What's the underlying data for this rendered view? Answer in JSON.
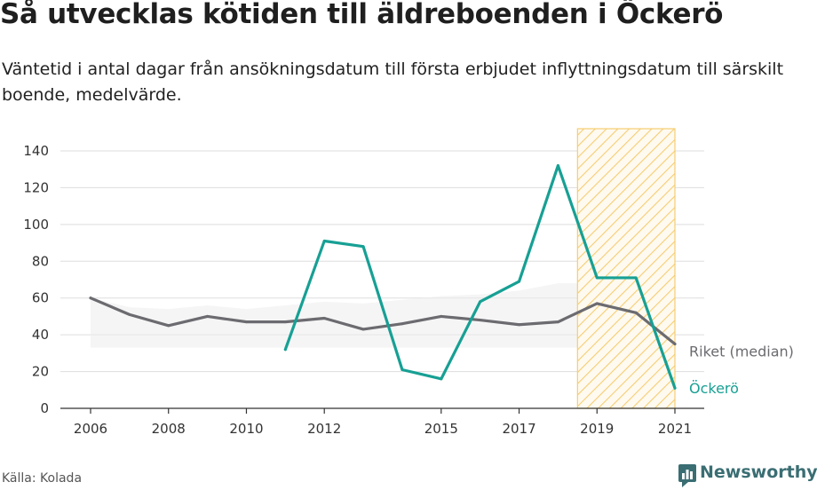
{
  "header": {
    "title": "Så utvecklas kötiden till äldreboenden i Öckerö",
    "subtitle": "Väntetid i antal dagar från ansökningsdatum till första erbjudet inflyttningsdatum till särskilt boende, medelvärde."
  },
  "footer": {
    "source": "Källa: Kolada",
    "brand": "Newsworthy",
    "brand_icon": "newsworthy-logo-icon"
  },
  "colors": {
    "ockero": "#17a094",
    "riket": "#6b6b70",
    "highlight_hatch": "#f5cd72",
    "grid": "#dddddd",
    "band_fill": "#ececec",
    "brand": "#3a6e73"
  },
  "chart_data": {
    "type": "line",
    "title": "Så utvecklas kötiden till äldreboenden i Öckerö",
    "xlabel": "",
    "ylabel": "",
    "xlim": [
      2006,
      2021
    ],
    "ylim": [
      0,
      140
    ],
    "yticks": [
      0,
      20,
      40,
      60,
      80,
      100,
      120,
      140
    ],
    "xticks": [
      2006,
      2008,
      2010,
      2012,
      2015,
      2017,
      2019,
      2021
    ],
    "grid": "horizontal",
    "legend": "direct labels at line ends (right)",
    "highlight_range": [
      2018.5,
      2021
    ],
    "series": [
      {
        "name": "Riket (median)",
        "x": [
          2006,
          2007,
          2008,
          2009,
          2010,
          2011,
          2012,
          2013,
          2014,
          2015,
          2016,
          2017,
          2018,
          2019,
          2020,
          2021
        ],
        "values": [
          60,
          51,
          45,
          50,
          47,
          47,
          49,
          43,
          46,
          50,
          48,
          45.5,
          47,
          57,
          52,
          35
        ]
      },
      {
        "name": "Öckerö",
        "x": [
          2011,
          2012,
          2013,
          2014,
          2015,
          2016,
          2017,
          2018,
          2019,
          2020,
          2021
        ],
        "values": [
          32,
          91,
          88,
          21,
          16,
          58,
          69,
          132,
          71,
          71,
          11
        ]
      }
    ],
    "band": {
      "x": [
        2006,
        2007,
        2008,
        2009,
        2010,
        2011,
        2012,
        2013,
        2014,
        2015,
        2016,
        2017,
        2018,
        2019,
        2020
      ],
      "low": [
        33,
        33,
        33,
        33,
        33,
        33,
        33,
        33,
        33,
        33,
        33,
        33,
        33,
        33,
        33
      ],
      "high": [
        60,
        55,
        54,
        56,
        54,
        56,
        58,
        57,
        59,
        61,
        62,
        64,
        68,
        68,
        66
      ]
    }
  }
}
